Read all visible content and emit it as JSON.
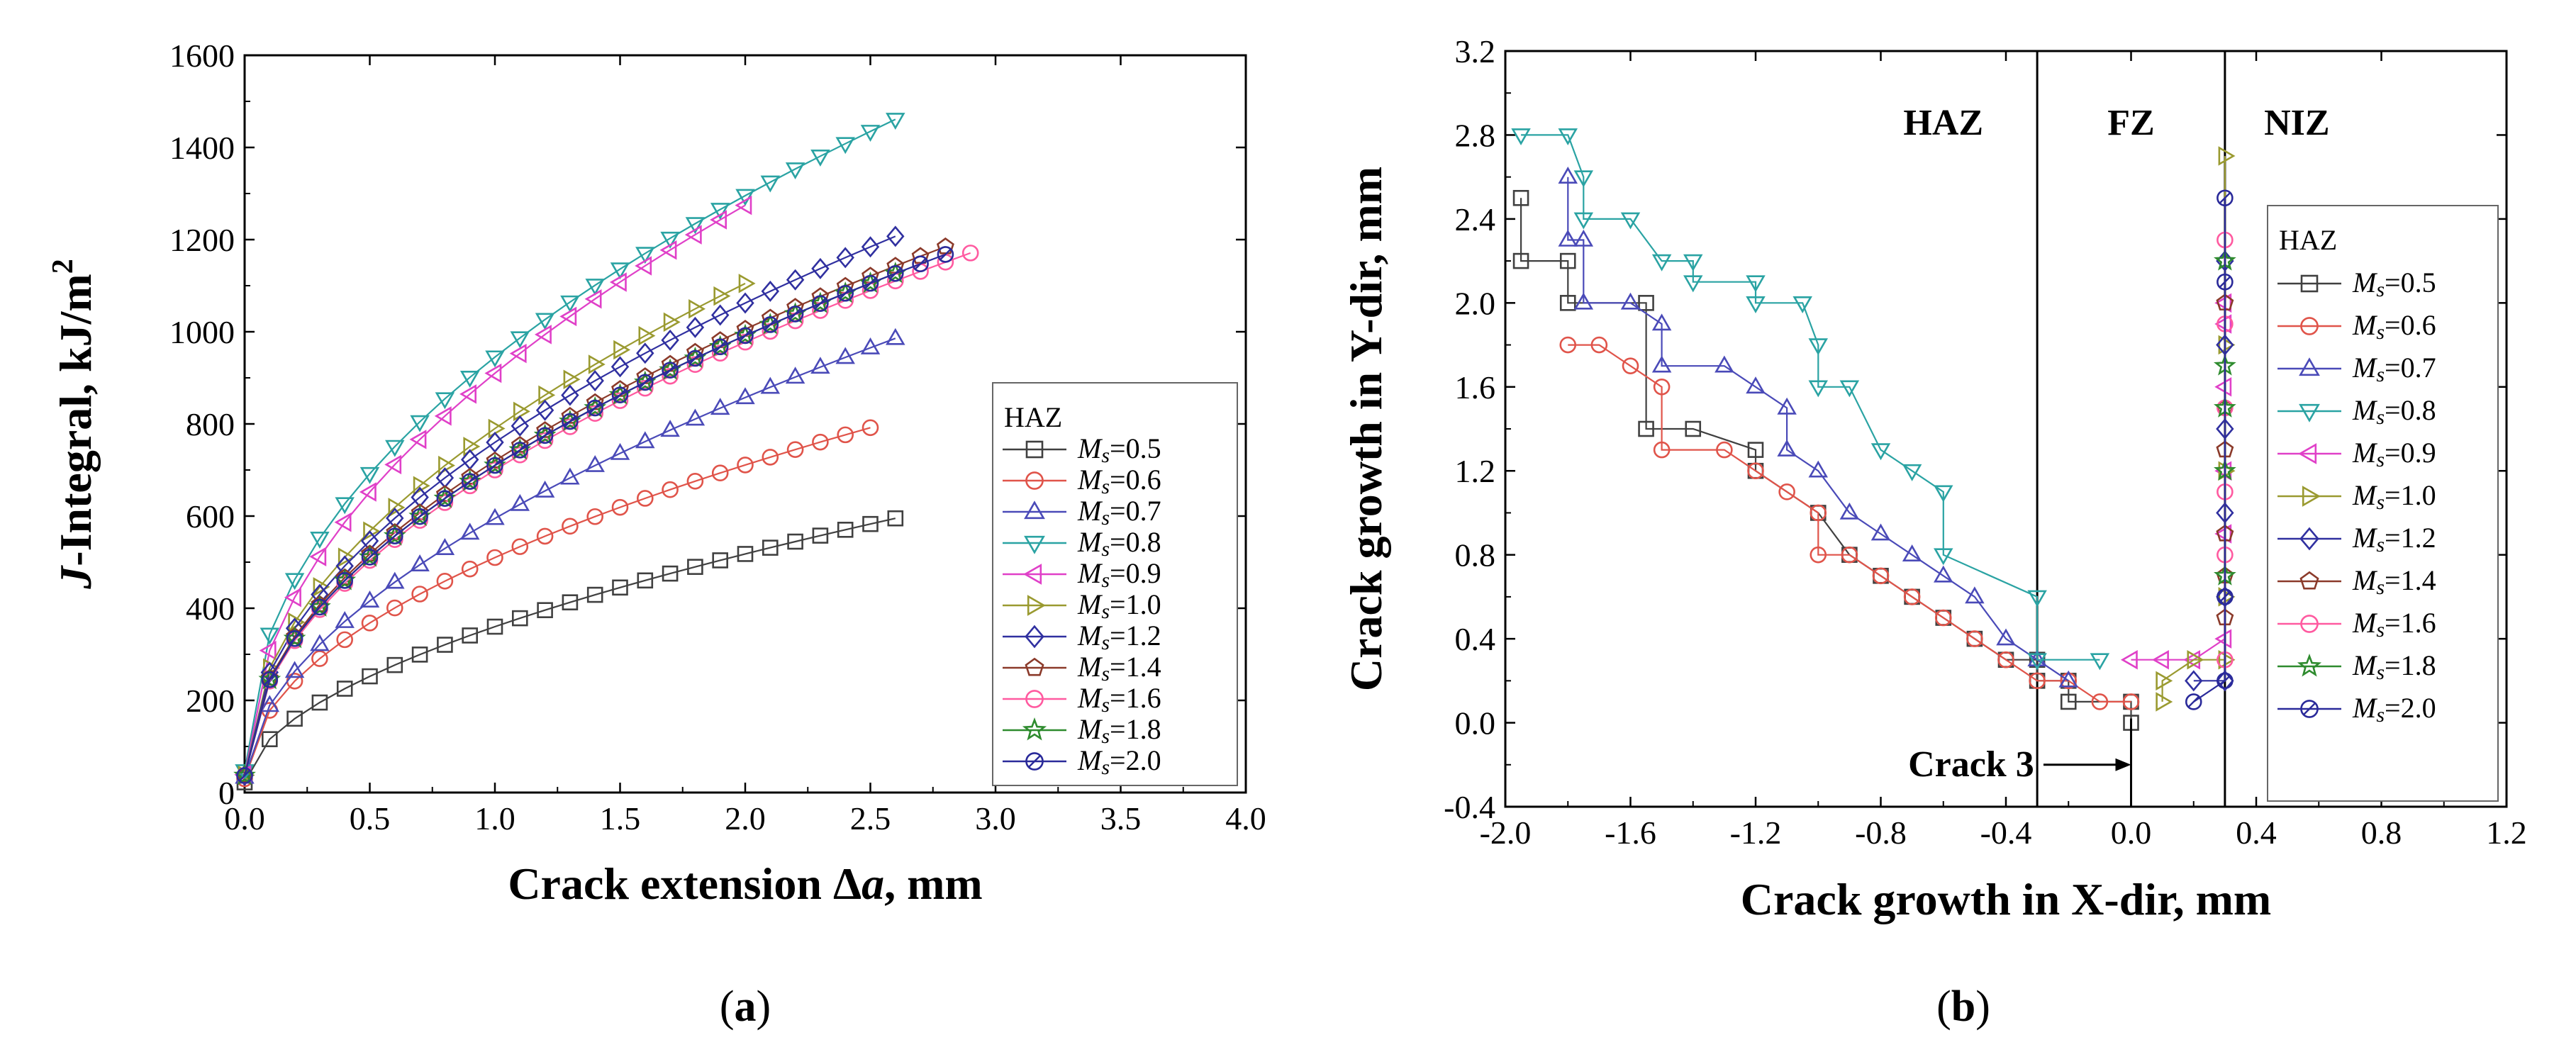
{
  "chart_data": [
    {
      "type": "line",
      "panel_label": "a",
      "xlabel_parts": [
        "Crack extension ",
        "Δ",
        "a",
        ", mm"
      ],
      "ylabel_parts": [
        "J",
        "-Integral, kJ/m",
        "2"
      ],
      "xlim": [
        0,
        4.0
      ],
      "ylim": [
        0,
        1600
      ],
      "xticks": [
        0.0,
        0.5,
        1.0,
        1.5,
        2.0,
        2.5,
        3.0,
        3.5,
        4.0
      ],
      "xtick_labels": [
        "0.0",
        "0.5",
        "1.0",
        "1.5",
        "2.0",
        "2.5",
        "3.0",
        "3.5",
        "4.0"
      ],
      "yticks": [
        0,
        200,
        400,
        600,
        800,
        1000,
        1200,
        1400,
        1600
      ],
      "ytick_labels": [
        "0",
        "200",
        "400",
        "600",
        "800",
        "1000",
        "1200",
        "1400",
        "1600"
      ],
      "legend_title": "HAZ",
      "legend_position": "right",
      "series": [
        {
          "name": "0.5",
          "color": "#404040",
          "marker": "square",
          "xmax": 2.6,
          "a": 340,
          "b": 0.55,
          "c": 20
        },
        {
          "name": "0.6",
          "color": "#e0544a",
          "marker": "circle",
          "xmax": 2.5,
          "a": 485,
          "b": 0.5,
          "c": 25
        },
        {
          "name": "0.7",
          "color": "#4a4ab8",
          "marker": "triangle",
          "xmax": 2.6,
          "a": 565,
          "b": 0.55,
          "c": 30
        },
        {
          "name": "0.8",
          "color": "#2aa3a3",
          "marker": "tri_down",
          "xmax": 2.6,
          "a": 910,
          "b": 0.47,
          "c": 35
        },
        {
          "name": "0.9",
          "color": "#e040c8",
          "marker": "tri_left",
          "xmax": 2.0,
          "a": 880,
          "b": 0.5,
          "c": 30
        },
        {
          "name": "1.0",
          "color": "#9a9a30",
          "marker": "tri_right",
          "xmax": 1.95,
          "a": 760,
          "b": 0.5,
          "c": 30
        },
        {
          "name": "1.2",
          "color": "#3030a0",
          "marker": "diamond",
          "xmax": 2.6,
          "a": 730,
          "b": 0.5,
          "c": 30
        },
        {
          "name": "1.4",
          "color": "#8b3a2a",
          "marker": "pentagon",
          "xmax": 2.75,
          "a": 690,
          "b": 0.5,
          "c": 30
        },
        {
          "name": "1.6",
          "color": "#ff5aa0",
          "marker": "circle",
          "xmax": 2.9,
          "a": 670,
          "b": 0.5,
          "c": 30
        },
        {
          "name": "1.8",
          "color": "#2e8b2e",
          "marker": "star",
          "xmax": 2.6,
          "a": 680,
          "b": 0.5,
          "c": 30
        },
        {
          "name": "2.0",
          "color": "#2a2a9a",
          "marker": "circle_x",
          "xmax": 2.8,
          "a": 680,
          "b": 0.5,
          "c": 30
        }
      ]
    },
    {
      "type": "line",
      "panel_label": "b",
      "xlabel": "Crack growth in X-dir, mm",
      "ylabel": "Crack growth in Y-dir, mm",
      "xlim": [
        -2.0,
        1.2
      ],
      "ylim": [
        -0.4,
        3.2
      ],
      "xticks": [
        -2.0,
        -1.6,
        -1.2,
        -0.8,
        -0.4,
        0.0,
        0.4,
        0.8,
        1.2
      ],
      "xtick_labels": [
        "-2.0",
        "-1.6",
        "-1.2",
        "-0.8",
        "-0.4",
        "0.0",
        "0.4",
        "0.8",
        "1.2"
      ],
      "yticks": [
        -0.4,
        0.0,
        0.4,
        0.8,
        1.2,
        1.6,
        2.0,
        2.4,
        2.8,
        3.2
      ],
      "ytick_labels": [
        "-0.4",
        "0.0",
        "0.4",
        "0.8",
        "1.2",
        "1.6",
        "2.0",
        "2.4",
        "2.8",
        "3.2"
      ],
      "regions": [
        "HAZ",
        "FZ",
        "NIZ"
      ],
      "region_boundaries_x": [
        -0.3,
        0.3
      ],
      "annotation": {
        "text": "Crack 3",
        "x": 0.0,
        "y": -0.2
      },
      "legend_title": "HAZ",
      "legend_position": "right",
      "series": [
        {
          "name": "0.5",
          "color": "#404040",
          "marker": "square",
          "x": [
            -1.95,
            -1.95,
            -1.8,
            -1.8,
            -1.55,
            -1.55,
            -1.4,
            -1.2,
            -1.2,
            -1.0,
            -0.9,
            -0.8,
            -0.7,
            -0.6,
            -0.5,
            -0.4,
            -0.3,
            -0.3,
            -0.2,
            -0.2,
            0.0,
            0.0
          ],
          "y": [
            2.5,
            2.2,
            2.2,
            2.0,
            2.0,
            1.4,
            1.4,
            1.3,
            1.2,
            1.0,
            0.8,
            0.7,
            0.6,
            0.5,
            0.4,
            0.3,
            0.3,
            0.2,
            0.2,
            0.1,
            0.1,
            0.0
          ]
        },
        {
          "name": "0.6",
          "color": "#e0544a",
          "marker": "circle",
          "x": [
            -1.8,
            -1.7,
            -1.6,
            -1.5,
            -1.5,
            -1.3,
            -1.2,
            -1.1,
            -1.0,
            -1.0,
            -0.9,
            -0.8,
            -0.7,
            -0.6,
            -0.5,
            -0.4,
            -0.3,
            -0.2,
            -0.1,
            0.0
          ],
          "y": [
            1.8,
            1.8,
            1.7,
            1.6,
            1.3,
            1.3,
            1.2,
            1.1,
            1.0,
            0.8,
            0.8,
            0.7,
            0.6,
            0.5,
            0.4,
            0.3,
            0.2,
            0.2,
            0.1,
            0.1
          ]
        },
        {
          "name": "0.7",
          "color": "#4a4ab8",
          "marker": "triangle",
          "x": [
            -1.8,
            -1.8,
            -1.75,
            -1.75,
            -1.6,
            -1.5,
            -1.5,
            -1.3,
            -1.2,
            -1.1,
            -1.1,
            -1.0,
            -0.9,
            -0.8,
            -0.7,
            -0.6,
            -0.5,
            -0.4,
            -0.3,
            -0.2
          ],
          "y": [
            2.6,
            2.3,
            2.3,
            2.0,
            2.0,
            1.9,
            1.7,
            1.7,
            1.6,
            1.5,
            1.3,
            1.2,
            1.0,
            0.9,
            0.8,
            0.7,
            0.6,
            0.4,
            0.3,
            0.2
          ]
        },
        {
          "name": "0.8",
          "color": "#2aa3a3",
          "marker": "tri_down",
          "x": [
            -1.95,
            -1.8,
            -1.75,
            -1.75,
            -1.6,
            -1.5,
            -1.4,
            -1.4,
            -1.2,
            -1.2,
            -1.05,
            -1.0,
            -1.0,
            -0.9,
            -0.8,
            -0.7,
            -0.6,
            -0.6,
            -0.3,
            -0.3,
            -0.1
          ],
          "y": [
            2.8,
            2.8,
            2.6,
            2.4,
            2.4,
            2.2,
            2.2,
            2.1,
            2.1,
            2.0,
            2.0,
            1.8,
            1.6,
            1.6,
            1.3,
            1.2,
            1.1,
            0.8,
            0.6,
            0.3,
            0.3
          ]
        },
        {
          "name": "0.9",
          "color": "#e040c8",
          "marker": "tri_left",
          "x": [
            0.0,
            0.1,
            0.2,
            0.3,
            0.3,
            0.3,
            0.3,
            0.3,
            0.3
          ],
          "y": [
            0.3,
            0.3,
            0.3,
            0.4,
            0.9,
            1.2,
            1.6,
            1.9,
            2.0
          ]
        },
        {
          "name": "1.0",
          "color": "#9a9a30",
          "marker": "tri_right",
          "x": [
            0.1,
            0.1,
            0.2,
            0.3,
            0.3,
            0.3,
            0.3,
            0.3
          ],
          "y": [
            0.1,
            0.2,
            0.3,
            0.3,
            0.6,
            1.2,
            1.8,
            2.7
          ]
        },
        {
          "name": "1.2",
          "color": "#3030a0",
          "marker": "diamond",
          "x": [
            0.2,
            0.3,
            0.3,
            0.3,
            0.3,
            0.3,
            0.3
          ],
          "y": [
            0.2,
            0.2,
            0.6,
            1.0,
            1.4,
            1.8,
            2.2
          ]
        },
        {
          "name": "1.4",
          "color": "#8b3a2a",
          "marker": "pentagon",
          "x": [
            0.3,
            0.3,
            0.3,
            0.3,
            0.3,
            0.3
          ],
          "y": [
            0.5,
            0.7,
            0.9,
            1.3,
            1.5,
            2.0
          ]
        },
        {
          "name": "1.6",
          "color": "#ff5aa0",
          "marker": "circle",
          "x": [
            0.3,
            0.3,
            0.3,
            0.3,
            0.3,
            0.3
          ],
          "y": [
            0.3,
            0.8,
            1.1,
            1.5,
            1.9,
            2.3
          ]
        },
        {
          "name": "1.8",
          "color": "#2e8b2e",
          "marker": "star",
          "x": [
            0.3,
            0.3,
            0.3,
            0.3,
            0.3
          ],
          "y": [
            0.7,
            1.2,
            1.5,
            1.7,
            2.2
          ]
        },
        {
          "name": "2.0",
          "color": "#2a2a9a",
          "marker": "circle_x",
          "x": [
            0.2,
            0.3,
            0.3,
            0.3,
            0.3
          ],
          "y": [
            0.1,
            0.2,
            0.6,
            2.1,
            2.5
          ]
        }
      ]
    }
  ]
}
